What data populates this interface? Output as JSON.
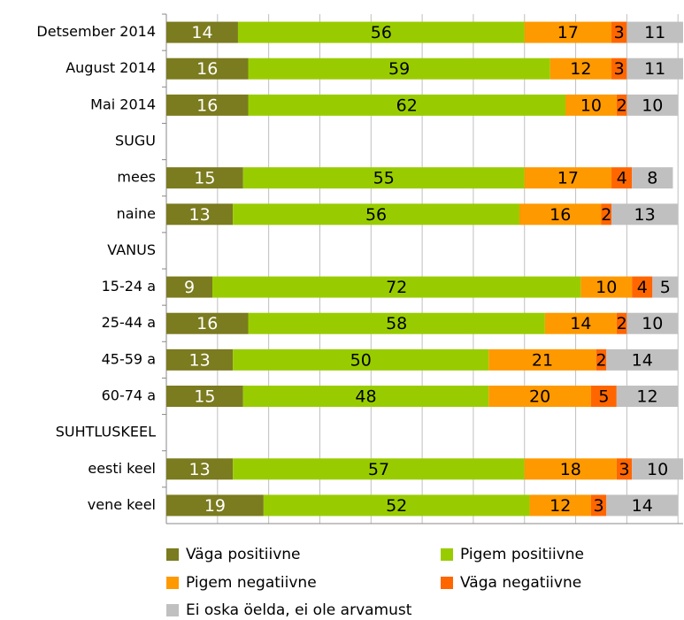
{
  "chart_data": {
    "type": "stacked-barh",
    "categories": [
      "Detsember 2014",
      "August 2014",
      "Mai 2014",
      "SUGU",
      "mees",
      "naine",
      "VANUS",
      "15-24 a",
      "25-44 a",
      "45-59 a",
      "60-74 a",
      "SUHTLUSKEEL",
      "eesti keel",
      "vene keel"
    ],
    "series": [
      {
        "name": "Väga positiivne",
        "color": "#7b7b1f",
        "values": [
          14,
          16,
          16,
          null,
          15,
          13,
          null,
          9,
          16,
          13,
          15,
          null,
          13,
          19
        ]
      },
      {
        "name": "Pigem positiivne",
        "color": "#99cc00",
        "values": [
          56,
          59,
          62,
          null,
          55,
          56,
          null,
          72,
          58,
          50,
          48,
          null,
          57,
          52
        ]
      },
      {
        "name": "Pigem negatiivne",
        "color": "#ff9900",
        "values": [
          17,
          12,
          10,
          null,
          17,
          16,
          null,
          10,
          14,
          21,
          20,
          null,
          18,
          12
        ]
      },
      {
        "name": "Väga negatiivne",
        "color": "#ff6600",
        "values": [
          3,
          3,
          2,
          null,
          4,
          2,
          null,
          4,
          2,
          2,
          5,
          null,
          3,
          3
        ]
      },
      {
        "name": "Ei oska öelda, ei ole arvamust",
        "color": "#c0c0c0",
        "values": [
          11,
          11,
          10,
          null,
          8,
          13,
          null,
          5,
          10,
          14,
          12,
          null,
          10,
          14
        ]
      }
    ],
    "xlim": [
      0,
      101
    ],
    "xticks": [
      0,
      10,
      20,
      30,
      40,
      50,
      60,
      70,
      80,
      90,
      100
    ],
    "grid": true
  }
}
